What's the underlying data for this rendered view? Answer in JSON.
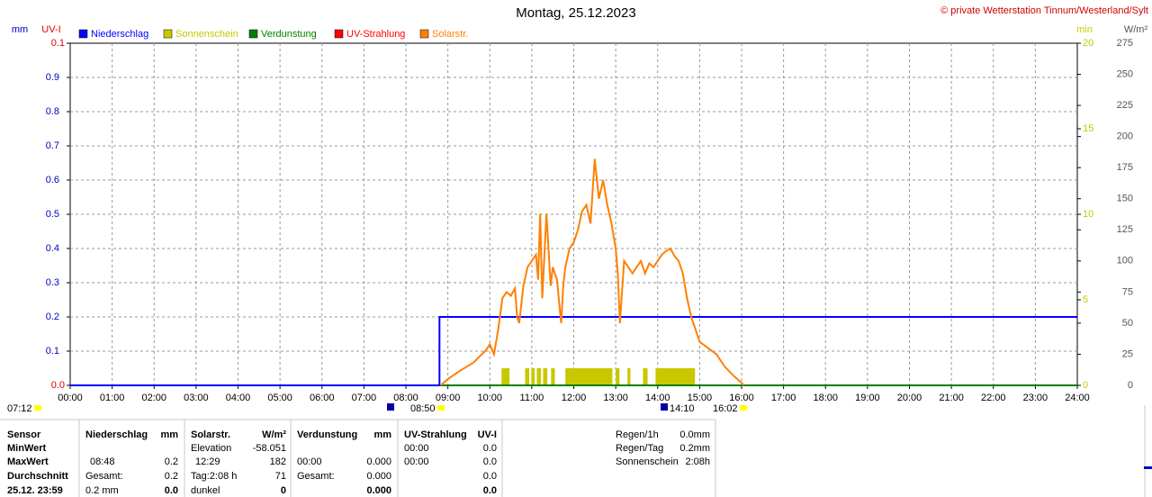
{
  "chart_data": {
    "type": "line",
    "title": "Montag, 25.12.2023",
    "credit": "© private Wetterstation Tinnum/Westerland/Sylt",
    "xlim": [
      0,
      24
    ],
    "xticks": [
      {
        "value": 0,
        "label": "00:00"
      },
      {
        "value": 1,
        "label": "01:00"
      },
      {
        "value": 2,
        "label": "02:00"
      },
      {
        "value": 3,
        "label": "03:00"
      },
      {
        "value": 4,
        "label": "04:00"
      },
      {
        "value": 5,
        "label": "05:00"
      },
      {
        "value": 6,
        "label": "06:00"
      },
      {
        "value": 7,
        "label": "07:00"
      },
      {
        "value": 8,
        "label": "08:00"
      },
      {
        "value": 9,
        "label": "09:00"
      },
      {
        "value": 10,
        "label": "10:00"
      },
      {
        "value": 11,
        "label": "11:00"
      },
      {
        "value": 12,
        "label": "12:00"
      },
      {
        "value": 13,
        "label": "13:00"
      },
      {
        "value": 14,
        "label": "14:00"
      },
      {
        "value": 15,
        "label": "15:00"
      },
      {
        "value": 16,
        "label": "16:00"
      },
      {
        "value": 17,
        "label": "17:00"
      },
      {
        "value": 18,
        "label": "18:00"
      },
      {
        "value": 19,
        "label": "19:00"
      },
      {
        "value": 20,
        "label": "20:00"
      },
      {
        "value": 21,
        "label": "21:00"
      },
      {
        "value": 22,
        "label": "22:00"
      },
      {
        "value": 23,
        "label": "23:00"
      },
      {
        "value": 24,
        "label": "24:00"
      }
    ],
    "grid": true,
    "axes": {
      "mm": {
        "label": "mm",
        "color": "#0000c8",
        "ylim": [
          0,
          1
        ],
        "yticks": [
          0.1,
          0.2,
          0.3,
          0.4,
          0.5,
          0.6,
          0.7,
          0.8,
          0.9
        ],
        "grid": true
      },
      "uv": {
        "label": "UV-I",
        "color": "#e00000",
        "ylim": [
          0,
          0.1
        ],
        "yticks": [
          {
            "value": 0,
            "label": "0.0"
          },
          0.1
        ]
      },
      "min": {
        "label": "min",
        "color": "#c8c800",
        "ylim": [
          0,
          20
        ],
        "yticks": [
          0,
          5,
          10,
          15,
          20
        ]
      },
      "wm2": {
        "label": "W/m²",
        "color": "#555555",
        "ylim": [
          0,
          275
        ],
        "yticks": [
          0,
          25,
          50,
          75,
          100,
          125,
          150,
          175,
          200,
          225,
          250,
          275
        ]
      }
    },
    "series": [
      {
        "name": "Niederschlag",
        "type": "line",
        "axis": "mm",
        "color": "#0000ff",
        "x": [
          0,
          8.8,
          8.8,
          24
        ],
        "values": [
          0,
          0,
          0.2,
          0.2
        ]
      },
      {
        "name": "Sonnenschein",
        "type": "bars",
        "axis": "min",
        "color": "#c8c800",
        "x_start": [
          10.28,
          10.84,
          10.99,
          11.12,
          11.27,
          11.46,
          11.8,
          13.0,
          13.28,
          13.65,
          13.95
        ],
        "x_end": [
          10.47,
          10.94,
          11.07,
          11.22,
          11.37,
          11.55,
          12.92,
          13.09,
          13.35,
          13.76,
          14.89
        ],
        "values": [
          1,
          1,
          1,
          1,
          1,
          1,
          1,
          1,
          1,
          1,
          1
        ]
      },
      {
        "name": "Verdunstung",
        "type": "line",
        "axis": "mm",
        "color": "#008000",
        "x": [
          0,
          24
        ],
        "values": [
          0,
          0
        ]
      },
      {
        "name": "UV-Strahlung",
        "type": "line",
        "axis": "uv",
        "color": "#ff0000",
        "x": [],
        "values": []
      },
      {
        "name": "Solarstr.",
        "type": "line",
        "axis": "wm2",
        "color": "#ff8000",
        "x": [
          8.83,
          9.0,
          9.3,
          9.6,
          9.9,
          10.0,
          10.1,
          10.2,
          10.3,
          10.4,
          10.5,
          10.6,
          10.65,
          10.7,
          10.8,
          10.9,
          11.0,
          11.1,
          11.15,
          11.2,
          11.25,
          11.35,
          11.45,
          11.5,
          11.6,
          11.7,
          11.75,
          11.8,
          11.9,
          12.0,
          12.1,
          12.2,
          12.3,
          12.4,
          12.5,
          12.6,
          12.7,
          12.8,
          12.9,
          13.0,
          13.05,
          13.1,
          13.2,
          13.3,
          13.4,
          13.5,
          13.6,
          13.7,
          13.8,
          13.9,
          14.0,
          14.1,
          14.2,
          14.3,
          14.4,
          14.5,
          14.6,
          14.7,
          14.8,
          14.9,
          15.0,
          15.2,
          15.4,
          15.6,
          15.8,
          16.0,
          16.05
        ],
        "values": [
          0,
          5,
          12,
          18,
          28,
          33,
          25,
          45,
          70,
          75,
          72,
          78,
          55,
          50,
          80,
          95,
          100,
          105,
          85,
          138,
          70,
          138,
          80,
          95,
          85,
          50,
          80,
          95,
          110,
          115,
          125,
          140,
          145,
          130,
          182,
          150,
          165,
          145,
          130,
          110,
          90,
          50,
          100,
          95,
          90,
          95,
          100,
          90,
          98,
          95,
          100,
          105,
          108,
          110,
          104,
          100,
          90,
          70,
          55,
          45,
          35,
          30,
          25,
          15,
          8,
          2,
          0
        ]
      }
    ],
    "markers": [
      "07:12",
      "08:50",
      "14:10",
      "16:02"
    ]
  },
  "stats": {
    "row_labels": [
      "Sensor",
      "MinWert",
      "MaxWert",
      "Durchschnitt",
      "25.12. 23:59"
    ],
    "columns": [
      {
        "cells": [
          [
            "Niederschlag",
            "mm"
          ],
          [
            null,
            null
          ],
          [
            "08:48",
            "0.2"
          ],
          [
            "Gesamt:",
            "0.2"
          ],
          [
            "0.2 mm",
            "0.0"
          ]
        ]
      },
      {
        "cells": [
          [
            "Solarstr.",
            "W/m²"
          ],
          [
            "Elevation",
            "-58.051"
          ],
          [
            "12:29",
            "182"
          ],
          [
            "Tag:2:08 h",
            "71"
          ],
          [
            "dunkel",
            "0"
          ]
        ]
      },
      {
        "cells": [
          [
            "Verdunstung",
            "mm"
          ],
          [
            null,
            null
          ],
          [
            "00:00",
            "0.000"
          ],
          [
            "Gesamt:",
            "0.000"
          ],
          [
            null,
            "0.000"
          ]
        ]
      },
      {
        "cells": [
          [
            "UV-Strahlung",
            "UV-I"
          ],
          [
            "00:00",
            "0.0"
          ],
          [
            "00:00",
            "0.0"
          ],
          [
            null,
            "0.0"
          ],
          [
            null,
            "0.0"
          ]
        ]
      }
    ],
    "summary": [
      [
        "Regen/1h",
        "0.0mm"
      ],
      [
        "Regen/Tag",
        "0.2mm"
      ],
      [
        "Sonnenschein",
        "2:08h"
      ]
    ]
  }
}
